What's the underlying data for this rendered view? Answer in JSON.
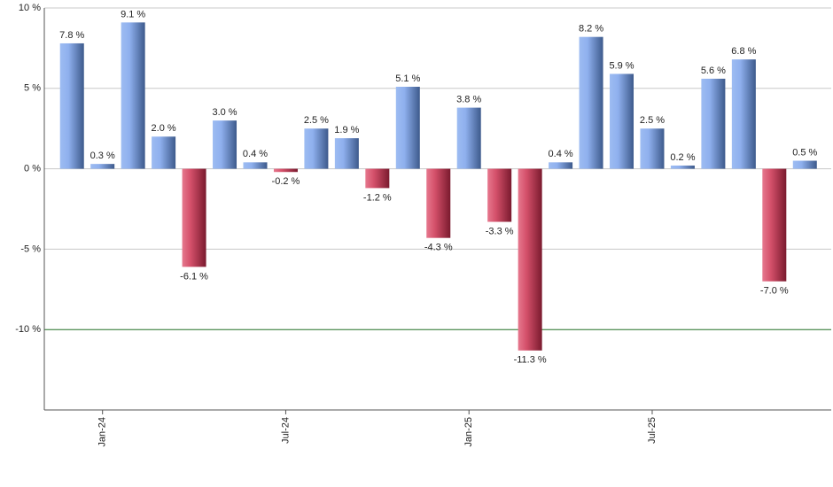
{
  "chart_data": {
    "type": "bar",
    "categories": [
      null,
      "Jan-24",
      null,
      null,
      null,
      null,
      null,
      "Jul-24",
      null,
      null,
      null,
      null,
      null,
      "Jan-25",
      null,
      null,
      null,
      null,
      null,
      "Jul-25",
      null,
      null,
      null,
      null,
      null
    ],
    "values": [
      7.8,
      0.3,
      9.1,
      2.0,
      -6.1,
      3.0,
      0.4,
      -0.2,
      2.5,
      1.9,
      -1.2,
      5.1,
      -4.3,
      3.8,
      -3.3,
      -11.3,
      0.4,
      8.2,
      5.9,
      2.5,
      0.2,
      5.6,
      6.8,
      -7.0,
      0.5
    ],
    "value_labels": [
      "7.8 %",
      "0.3 %",
      "9.1 %",
      "2.0 %",
      "-6.1 %",
      "3.0 %",
      "0.4 %",
      "-0.2 %",
      "2.5 %",
      "1.9 %",
      "-1.2 %",
      "5.1 %",
      "-4.3 %",
      "3.8 %",
      "-3.3 %",
      "-11.3 %",
      "0.4 %",
      "8.2 %",
      "5.9 %",
      "2.5 %",
      "0.2 %",
      "5.6 %",
      "6.8 %",
      "-7.0 %",
      "0.5 %"
    ],
    "positive_color": "#6f98e0",
    "negative_color": "#c8324f",
    "ylim": [
      -15,
      10
    ],
    "yticks": [
      {
        "value": 10,
        "label": "10 %"
      },
      {
        "value": 5,
        "label": "5 %"
      },
      {
        "value": 0,
        "label": "0 %"
      },
      {
        "value": -5,
        "label": "-5 %"
      },
      {
        "value": -10,
        "label": "-10 %"
      }
    ],
    "grid": true,
    "reference_line": {
      "value": -10,
      "color": "#2e7d32"
    }
  }
}
